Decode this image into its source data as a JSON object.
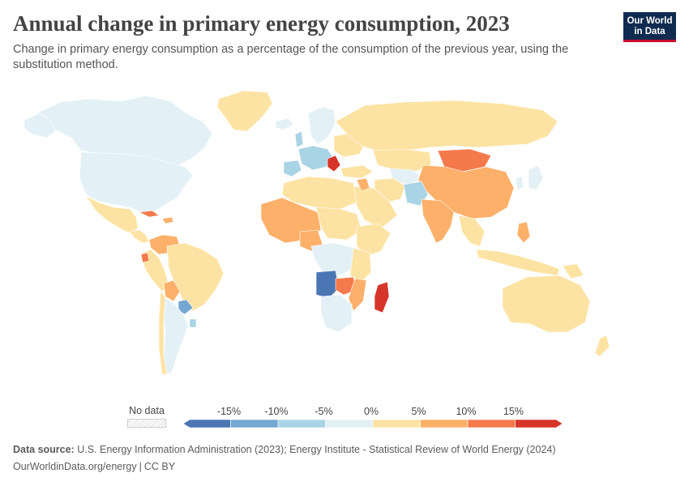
{
  "header": {
    "title": "Annual change in primary energy consumption, 2023",
    "subtitle": "Change in primary energy consumption as a percentage of the consumption of the previous year, using the substitution method."
  },
  "logo": {
    "line1": "Our World",
    "line2": "in Data"
  },
  "legend": {
    "no_data_label": "No data",
    "ticks": [
      "-15%",
      "-10%",
      "-5%",
      "0%",
      "5%",
      "10%",
      "15%"
    ],
    "bins": [
      {
        "color": "#4a77b4"
      },
      {
        "color": "#74a7d1"
      },
      {
        "color": "#a9d4e5"
      },
      {
        "color": "#e3f1f6"
      },
      {
        "color": "#fde3a3"
      },
      {
        "color": "#fdb06a"
      },
      {
        "color": "#f47a4c"
      },
      {
        "color": "#d73529"
      }
    ]
  },
  "colors": {
    "no_data": "#dddddd",
    "bin_neg15": "#4a77b4",
    "bin_neg10": "#74a7d1",
    "bin_neg5": "#a9d4e5",
    "bin_0": "#e3f1f6",
    "bin_5": "#fde3a3",
    "bin_10": "#fdb06a",
    "bin_15": "#f47a4c",
    "bin_max": "#d73529"
  },
  "footer": {
    "source_label": "Data source:",
    "source_text": "U.S. Energy Information Administration (2023); Energy Institute - Statistical Review of World Energy (2024)",
    "url": "OurWorldinData.org/energy",
    "license": "CC BY"
  }
}
